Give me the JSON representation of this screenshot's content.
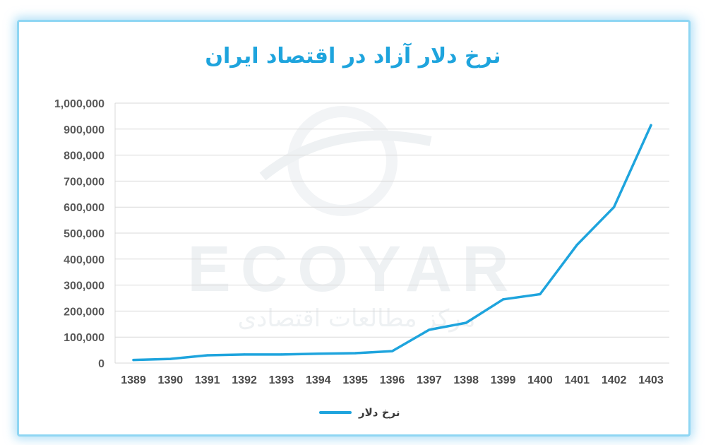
{
  "chart_data": {
    "type": "line",
    "title": "نرخ دلار آزاد در اقتصاد ایران",
    "categories": [
      "1389",
      "1390",
      "1391",
      "1392",
      "1393",
      "1394",
      "1395",
      "1396",
      "1397",
      "1398",
      "1399",
      "1400",
      "1401",
      "1402",
      "1403"
    ],
    "series": [
      {
        "name": "نرخ دلار",
        "values": [
          12000,
          16000,
          30000,
          33000,
          33000,
          36000,
          38000,
          46000,
          128000,
          155000,
          245000,
          265000,
          455000,
          600000,
          915000
        ],
        "color": "#1ea4dd"
      }
    ],
    "yticks": [
      "0",
      "100,000",
      "200,000",
      "300,000",
      "400,000",
      "500,000",
      "600,000",
      "700,000",
      "800,000",
      "900,000",
      "1,000,000"
    ],
    "ylim": [
      0,
      1000000
    ],
    "grid": true,
    "legend": "bottom"
  },
  "watermark": {
    "text": "ECOYAR",
    "subtitle": "مرکز مطالعات اقتصادی"
  }
}
